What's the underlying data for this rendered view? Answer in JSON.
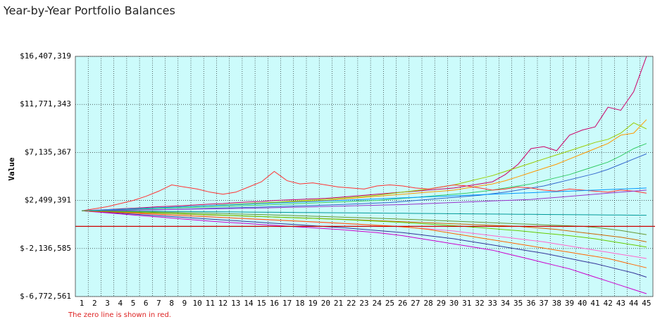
{
  "chart_data": {
    "type": "line",
    "title": "Year-by-Year Portfolio Balances",
    "y_label": "Value",
    "note": "The zero line is shown in red.",
    "categories": [
      1,
      2,
      3,
      4,
      5,
      6,
      7,
      8,
      9,
      10,
      11,
      12,
      13,
      14,
      15,
      16,
      17,
      18,
      19,
      20,
      21,
      22,
      23,
      24,
      25,
      26,
      27,
      28,
      29,
      30,
      31,
      32,
      33,
      34,
      35,
      36,
      37,
      38,
      39,
      40,
      41,
      42,
      43,
      44,
      45
    ],
    "ylim": [
      -6772561,
      16407319
    ],
    "yticks": [
      {
        "value": -6772561,
        "label": "$-6,772,561"
      },
      {
        "value": -2136585,
        "label": "$-2,136,585"
      },
      {
        "value": 2499391,
        "label": "$2,499,391"
      },
      {
        "value": 7135367,
        "label": "$7,135,367"
      },
      {
        "value": 11771343,
        "label": "$11,771,343"
      },
      {
        "value": 16407319,
        "label": "$16,407,319"
      }
    ],
    "grid": true,
    "background": "#ccfbfb",
    "zero_line": 0,
    "zero_line_color": "#cc0000",
    "series": [
      {
        "color": "#cc0066",
        "values": [
          1500000,
          1560000,
          1620000,
          1700000,
          1750000,
          1820000,
          1900000,
          1950000,
          2000000,
          2080000,
          2150000,
          2200000,
          2280000,
          2350000,
          2400000,
          2500000,
          2550000,
          2600000,
          2650000,
          2700000,
          2800000,
          2900000,
          3000000,
          3100000,
          3200000,
          3300000,
          3400000,
          3500000,
          3600000,
          3700000,
          3900000,
          4100000,
          4300000,
          5000000,
          6000000,
          7500000,
          7700000,
          7300000,
          8800000,
          9300000,
          9600000,
          11500000,
          11200000,
          13000000,
          16400000
        ]
      },
      {
        "color": "#ff9900",
        "values": [
          1500000,
          1550000,
          1600000,
          1650000,
          1700000,
          1750000,
          1800000,
          1850000,
          1900000,
          1950000,
          2000000,
          2050000,
          2100000,
          2150000,
          2200000,
          2300000,
          2350000,
          2400000,
          2450000,
          2500000,
          2600000,
          2700000,
          2800000,
          2900000,
          3000000,
          3100000,
          3200000,
          3300000,
          3400000,
          3500000,
          3700000,
          3900000,
          4100000,
          4400000,
          4800000,
          5200000,
          5600000,
          6000000,
          6500000,
          7000000,
          7500000,
          8000000,
          8800000,
          9000000,
          10300000
        ]
      },
      {
        "color": "#99cc00",
        "values": [
          1500000,
          1540000,
          1590000,
          1640000,
          1690000,
          1740000,
          1790000,
          1850000,
          1900000,
          1960000,
          2020000,
          2080000,
          2140000,
          2200000,
          2260000,
          2330000,
          2400000,
          2470000,
          2540000,
          2610000,
          2700000,
          2800000,
          2900000,
          3000000,
          3150000,
          3300000,
          3450000,
          3600000,
          3800000,
          4000000,
          4300000,
          4600000,
          4900000,
          5300000,
          5700000,
          6100000,
          6500000,
          6900000,
          7300000,
          7700000,
          8100000,
          8400000,
          9000000,
          10000000,
          9400000
        ]
      },
      {
        "color": "#33cc66",
        "values": [
          1500000,
          1530000,
          1570000,
          1610000,
          1650000,
          1690000,
          1730000,
          1770000,
          1810000,
          1850000,
          1890000,
          1930000,
          1970000,
          2010000,
          2050000,
          2100000,
          2150000,
          2200000,
          2250000,
          2300000,
          2350000,
          2400000,
          2450000,
          2500000,
          2600000,
          2700000,
          2800000,
          2900000,
          3000000,
          3100000,
          3200000,
          3350000,
          3500000,
          3700000,
          3900000,
          4100000,
          4400000,
          4700000,
          5000000,
          5400000,
          5800000,
          6200000,
          6800000,
          7500000,
          8000000
        ]
      },
      {
        "color": "#3366cc",
        "values": [
          1500000,
          1520000,
          1540000,
          1560000,
          1580000,
          1600000,
          1620000,
          1650000,
          1680000,
          1710000,
          1740000,
          1770000,
          1800000,
          1830000,
          1860000,
          1900000,
          1940000,
          1980000,
          2020000,
          2060000,
          2100000,
          2150000,
          2200000,
          2250000,
          2300000,
          2400000,
          2500000,
          2600000,
          2700000,
          2800000,
          2900000,
          3000000,
          3150000,
          3300000,
          3500000,
          3700000,
          3900000,
          4200000,
          4500000,
          4800000,
          5100000,
          5500000,
          6000000,
          6500000,
          7000000
        ]
      },
      {
        "color": "#ff3333",
        "values": [
          1500000,
          1700000,
          1900000,
          2200000,
          2500000,
          2900000,
          3400000,
          4000000,
          3800000,
          3600000,
          3300000,
          3100000,
          3300000,
          3800000,
          4300000,
          5300000,
          4400000,
          4100000,
          4200000,
          4000000,
          3800000,
          3700000,
          3600000,
          3900000,
          4000000,
          3900000,
          3700000,
          3600000,
          3800000,
          4000000,
          3900000,
          3700000,
          3500000,
          3600000,
          3800000,
          3700000,
          3500000,
          3400000,
          3600000,
          3500000,
          3400000,
          3300000,
          3500000,
          3400000,
          3200000
        ]
      },
      {
        "color": "#9933cc",
        "values": [
          1500000,
          1510000,
          1530000,
          1550000,
          1570000,
          1590000,
          1610000,
          1630000,
          1650000,
          1670000,
          1690000,
          1710000,
          1730000,
          1750000,
          1770000,
          1800000,
          1830000,
          1860000,
          1890000,
          1920000,
          1950000,
          1980000,
          2010000,
          2040000,
          2070000,
          2100000,
          2150000,
          2200000,
          2250000,
          2300000,
          2350000,
          2400000,
          2450000,
          2500000,
          2550000,
          2600000,
          2700000,
          2800000,
          2900000,
          3000000,
          3100000,
          3200000,
          3300000,
          3400000,
          3500000
        ]
      },
      {
        "color": "#009999",
        "values": [
          1500000,
          1500000,
          1490000,
          1480000,
          1470000,
          1460000,
          1450000,
          1440000,
          1430000,
          1420000,
          1410000,
          1400000,
          1390000,
          1380000,
          1370000,
          1360000,
          1350000,
          1340000,
          1330000,
          1320000,
          1310000,
          1300000,
          1290000,
          1280000,
          1270000,
          1260000,
          1250000,
          1240000,
          1230000,
          1220000,
          1210000,
          1200000,
          1190000,
          1180000,
          1170000,
          1160000,
          1150000,
          1140000,
          1130000,
          1120000,
          1110000,
          1100000,
          1090000,
          1080000,
          1070000
        ]
      },
      {
        "color": "#cc6600",
        "values": [
          1500000,
          1460000,
          1420000,
          1380000,
          1340000,
          1300000,
          1260000,
          1220000,
          1180000,
          1140000,
          1100000,
          1060000,
          1020000,
          980000,
          940000,
          900000,
          860000,
          820000,
          780000,
          740000,
          700000,
          650000,
          600000,
          550000,
          500000,
          450000,
          400000,
          350000,
          300000,
          250000,
          200000,
          150000,
          100000,
          50000,
          0,
          -100000,
          -200000,
          -300000,
          -450000,
          -600000,
          -750000,
          -900000,
          -1050000,
          -1250000,
          -1500000
        ]
      },
      {
        "color": "#ff66cc",
        "values": [
          1500000,
          1440000,
          1380000,
          1320000,
          1260000,
          1200000,
          1140000,
          1080000,
          1020000,
          960000,
          900000,
          840000,
          780000,
          720000,
          660000,
          600000,
          540000,
          480000,
          420000,
          360000,
          300000,
          230000,
          160000,
          90000,
          20000,
          -50000,
          -150000,
          -250000,
          -350000,
          -450000,
          -600000,
          -750000,
          -900000,
          -1050000,
          -1200000,
          -1350000,
          -1500000,
          -1700000,
          -1900000,
          -2100000,
          -2300000,
          -2500000,
          -2700000,
          -2900000,
          -3100000
        ]
      },
      {
        "color": "#333399",
        "values": [
          1500000,
          1420000,
          1340000,
          1260000,
          1180000,
          1100000,
          1020000,
          940000,
          860000,
          780000,
          700000,
          620000,
          540000,
          460000,
          380000,
          300000,
          220000,
          140000,
          60000,
          -20000,
          -100000,
          -200000,
          -300000,
          -400000,
          -500000,
          -600000,
          -750000,
          -900000,
          -1050000,
          -1200000,
          -1400000,
          -1600000,
          -1800000,
          -2000000,
          -2200000,
          -2400000,
          -2600000,
          -2850000,
          -3100000,
          -3350000,
          -3600000,
          -3900000,
          -4200000,
          -4500000,
          -4900000
        ]
      },
      {
        "color": "#cc00cc",
        "values": [
          1500000,
          1400000,
          1300000,
          1200000,
          1100000,
          1000000,
          900000,
          800000,
          700000,
          600000,
          500000,
          420000,
          340000,
          260000,
          180000,
          100000,
          20000,
          -60000,
          -140000,
          -220000,
          -300000,
          -400000,
          -500000,
          -600000,
          -750000,
          -900000,
          -1100000,
          -1300000,
          -1500000,
          -1700000,
          -1900000,
          -2100000,
          -2300000,
          -2600000,
          -2900000,
          -3200000,
          -3500000,
          -3800000,
          -4100000,
          -4500000,
          -4900000,
          -5300000,
          -5700000,
          -6100000,
          -6500000
        ]
      },
      {
        "color": "#66cc00",
        "values": [
          1500000,
          1480000,
          1450000,
          1400000,
          1380000,
          1330000,
          1300000,
          1250000,
          1220000,
          1170000,
          1130000,
          1080000,
          1040000,
          990000,
          950000,
          900000,
          860000,
          810000,
          770000,
          720000,
          680000,
          620000,
          560000,
          500000,
          440000,
          370000,
          300000,
          220000,
          140000,
          60000,
          -20000,
          -120000,
          -220000,
          -320000,
          -420000,
          -540000,
          -660000,
          -780000,
          -900000,
          -1050000,
          -1200000,
          -1400000,
          -1600000,
          -1800000,
          -2000000
        ]
      },
      {
        "color": "#ff6600",
        "values": [
          1500000,
          1450000,
          1400000,
          1340000,
          1280000,
          1220000,
          1160000,
          1100000,
          1040000,
          980000,
          920000,
          860000,
          800000,
          740000,
          680000,
          620000,
          560000,
          500000,
          440000,
          380000,
          320000,
          250000,
          180000,
          110000,
          40000,
          -50000,
          -150000,
          -300000,
          -500000,
          -700000,
          -900000,
          -1100000,
          -1300000,
          -1500000,
          -1700000,
          -1900000,
          -2100000,
          -2300000,
          -2500000,
          -2700000,
          -2900000,
          -3100000,
          -3400000,
          -3700000,
          -4000000
        ]
      },
      {
        "color": "#0099ff",
        "values": [
          1500000,
          1550000,
          1600000,
          1650000,
          1700000,
          1750000,
          1800000,
          1850000,
          1900000,
          1950000,
          2000000,
          2050000,
          2100000,
          2150000,
          2200000,
          2250000,
          2300000,
          2350000,
          2400000,
          2450000,
          2500000,
          2550000,
          2600000,
          2650000,
          2700000,
          2750000,
          2800000,
          2850000,
          2900000,
          2950000,
          3000000,
          3050000,
          3100000,
          3150000,
          3200000,
          3250000,
          3300000,
          3350000,
          3400000,
          3450000,
          3500000,
          3550000,
          3600000,
          3650000,
          3700000
        ]
      },
      {
        "color": "#669933",
        "values": [
          1500000,
          1480000,
          1460000,
          1440000,
          1420000,
          1400000,
          1380000,
          1350000,
          1320000,
          1290000,
          1260000,
          1230000,
          1200000,
          1170000,
          1140000,
          1100000,
          1060000,
          1020000,
          980000,
          940000,
          900000,
          860000,
          820000,
          780000,
          740000,
          700000,
          650000,
          600000,
          550000,
          500000,
          450000,
          400000,
          350000,
          300000,
          250000,
          200000,
          150000,
          100000,
          50000,
          0,
          -100000,
          -250000,
          -400000,
          -600000,
          -800000
        ]
      }
    ]
  }
}
